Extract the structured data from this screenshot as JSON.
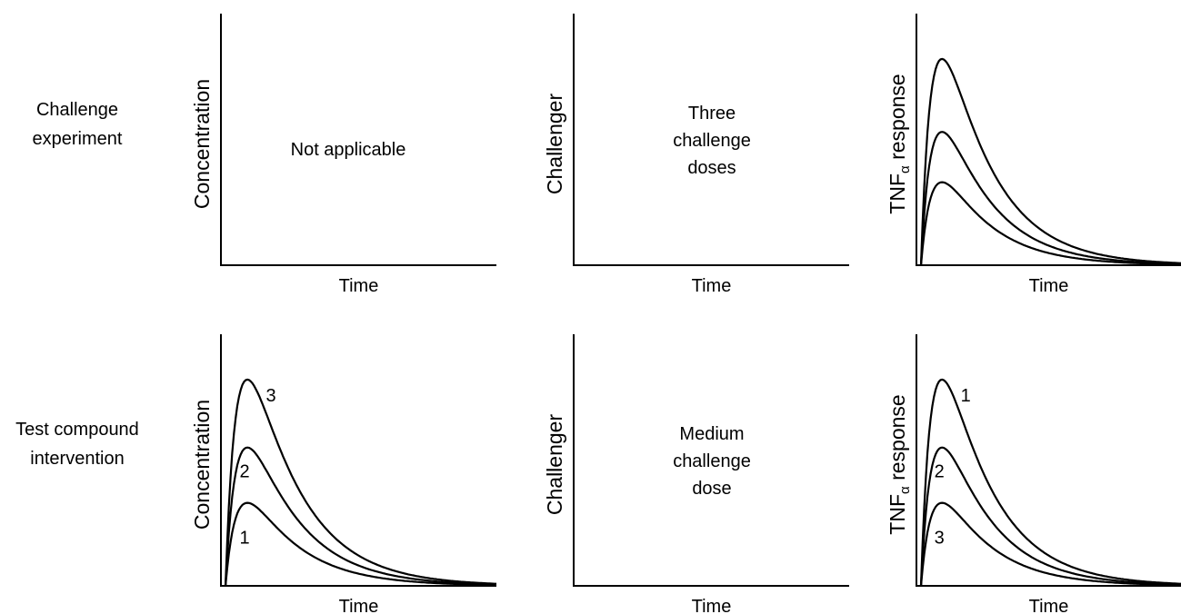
{
  "rows": [
    {
      "label": [
        "Challenge",
        "experiment"
      ]
    },
    {
      "label": [
        "Test compound",
        "intervention"
      ]
    }
  ],
  "panels": [
    {
      "ylabel": "Concentration",
      "xlabel": "Time",
      "note": [
        "Not applicable"
      ],
      "curves": [],
      "curve_labels": []
    },
    {
      "ylabel": "Challenger",
      "xlabel": "Time",
      "note": [
        "Three",
        "challenge",
        "doses"
      ],
      "curves": [],
      "curve_labels": []
    },
    {
      "ylabel_main": "TNF",
      "ylabel_sub": "α",
      "ylabel_rest": " response",
      "xlabel": "Time",
      "note": [],
      "curves": [
        0.33,
        0.53,
        0.82
      ],
      "curve_labels": []
    },
    {
      "ylabel": "Concentration",
      "xlabel": "Time",
      "note": [],
      "curves": [
        0.33,
        0.55,
        0.82
      ],
      "curve_labels": [
        "1",
        "2",
        "3"
      ]
    },
    {
      "ylabel": "Challenger",
      "xlabel": "Time",
      "note": [
        "Medium",
        "challenge",
        "dose"
      ],
      "curves": [],
      "curve_labels": []
    },
    {
      "ylabel_main": "TNF",
      "ylabel_sub": "α",
      "ylabel_rest": " response",
      "xlabel": "Time",
      "note": [],
      "curves": [
        0.33,
        0.55,
        0.82
      ],
      "curve_labels": [
        "3",
        "2",
        "1"
      ]
    }
  ]
}
